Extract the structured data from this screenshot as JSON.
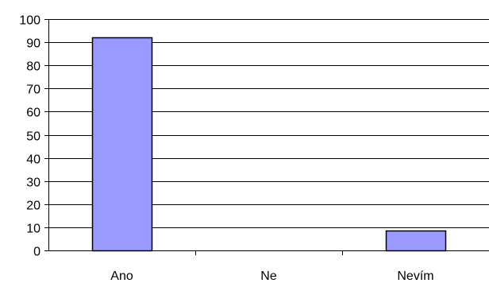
{
  "chart_data": {
    "type": "bar",
    "categories": [
      "Ano",
      "Ne",
      "Nevím"
    ],
    "values": [
      92,
      0,
      8.5
    ],
    "ylim": [
      0,
      100
    ],
    "yticks": [
      0,
      10,
      20,
      30,
      40,
      50,
      60,
      70,
      80,
      90,
      100
    ],
    "title": "",
    "xlabel": "",
    "ylabel": "",
    "grid": true,
    "legend": "none",
    "colors": {
      "bar_fill": "#9999ff",
      "bar_stroke": "#000000",
      "grid": "#000000",
      "axis": "#000000",
      "background": "#ffffff"
    }
  }
}
